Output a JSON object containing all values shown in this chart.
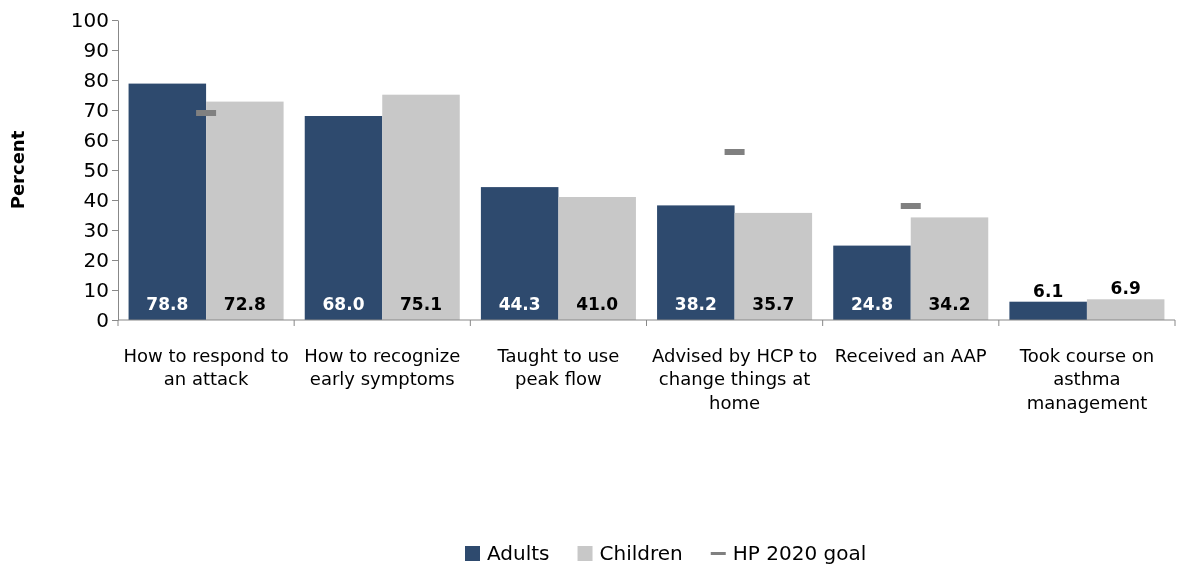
{
  "chart_data": {
    "type": "bar",
    "ylabel": "Percent",
    "categories": [
      "How to respond to an attack",
      "How to recognize early symptoms",
      "Taught to use peak flow",
      "Advised by HCP to change things at home",
      "Received an AAP",
      "Took course on asthma management"
    ],
    "series": [
      {
        "name": "Adults",
        "color": "#2e4a6e",
        "values": [
          78.8,
          68.0,
          44.3,
          38.2,
          24.8,
          6.1
        ],
        "value_labels": [
          "78.8",
          "68.0",
          "44.3",
          "38.2",
          "24.8",
          "6.1"
        ]
      },
      {
        "name": "Children",
        "color": "#c8c8c8",
        "values": [
          72.8,
          75.1,
          41.0,
          35.7,
          34.2,
          6.9
        ],
        "value_labels": [
          "72.8",
          "75.1",
          "41.0",
          "35.7",
          "34.2",
          "6.9"
        ]
      },
      {
        "name": "HP 2020 goal",
        "type": "scatter",
        "color": "#808080",
        "values": [
          69,
          null,
          null,
          56,
          38,
          null
        ]
      }
    ],
    "ylim": [
      0,
      100
    ],
    "yticks": [
      0,
      10,
      20,
      30,
      40,
      50,
      60,
      70,
      80,
      90,
      100
    ],
    "legend": "bottom"
  }
}
